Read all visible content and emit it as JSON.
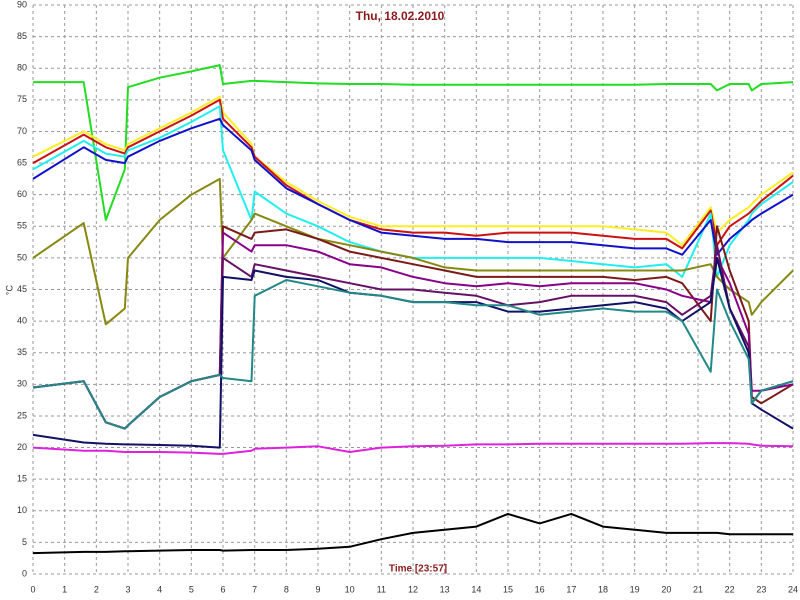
{
  "chart_data": {
    "type": "line",
    "title": "Thu, 18.02.2010",
    "y_label": "°C",
    "x_label": "Time [23:57]",
    "x": [
      0,
      1.6,
      2.3,
      2.9,
      3,
      4,
      5,
      5.9,
      6,
      6.9,
      7,
      8,
      9,
      10,
      11,
      12,
      13,
      14,
      15,
      16,
      17,
      18,
      19,
      20,
      20.5,
      21.4,
      21.6,
      22,
      22.6,
      22.7,
      23,
      24
    ],
    "xlim": [
      0,
      24
    ],
    "xticks": [
      0,
      1,
      2,
      3,
      4,
      5,
      6,
      7,
      8,
      9,
      10,
      11,
      12,
      13,
      14,
      15,
      16,
      17,
      18,
      19,
      20,
      21,
      22,
      23,
      24
    ],
    "ylim": [
      0,
      90
    ],
    "yticks": [
      0,
      5,
      10,
      15,
      20,
      25,
      30,
      35,
      40,
      45,
      50,
      55,
      60,
      65,
      70,
      75,
      80,
      85,
      90
    ],
    "grid": true,
    "series": [
      {
        "color": "#22dd22",
        "values": [
          77.8,
          77.8,
          56,
          64,
          77,
          78.5,
          79.5,
          80.5,
          77.5,
          78,
          78,
          77.8,
          77.6,
          77.5,
          77.5,
          77.4,
          77.4,
          77.4,
          77.4,
          77.4,
          77.4,
          77.4,
          77.4,
          77.5,
          77.5,
          77.5,
          76.5,
          77.5,
          77.5,
          76.5,
          77.5,
          77.8
        ]
      },
      {
        "color": "#ffee22",
        "values": [
          66,
          70,
          68,
          67,
          68,
          70.5,
          73,
          75.5,
          73,
          68,
          66,
          62,
          59,
          56.5,
          55,
          55,
          55,
          55,
          55,
          55,
          55,
          55,
          54.5,
          54,
          52,
          58,
          54,
          56,
          58,
          58.5,
          60,
          63.5
        ]
      },
      {
        "color": "#cc1111",
        "values": [
          65,
          69.5,
          67.5,
          66.5,
          67.5,
          70,
          72.5,
          75,
          72,
          67.5,
          66,
          61.5,
          58.5,
          56,
          54.5,
          54,
          54,
          53.5,
          54,
          54,
          54,
          53.5,
          53,
          53,
          51.5,
          57.5,
          52,
          55,
          57,
          57.5,
          59,
          63
        ]
      },
      {
        "color": "#22eeee",
        "values": [
          64,
          68.5,
          66.5,
          66,
          67,
          69,
          71.5,
          74,
          67,
          56,
          60.5,
          57,
          55,
          52.5,
          51,
          50,
          50,
          50,
          50,
          50,
          49.5,
          49,
          48.5,
          49,
          47,
          57,
          47,
          52,
          56,
          57,
          58.5,
          62
        ]
      },
      {
        "color": "#1111cc",
        "values": [
          62.5,
          67.5,
          65.5,
          65,
          66,
          68.5,
          70.5,
          72,
          71,
          67,
          65.5,
          61,
          58.5,
          56,
          54,
          53.5,
          53,
          53,
          52.5,
          52.5,
          52.5,
          52,
          51.5,
          51.5,
          50.5,
          56,
          50.5,
          53,
          55.5,
          56,
          57,
          60
        ]
      },
      {
        "color": "#888811",
        "values": [
          50,
          55.5,
          39.5,
          42,
          50,
          56,
          60,
          62.5,
          50,
          56,
          57,
          55,
          53,
          52,
          51,
          50,
          48.5,
          48,
          48,
          48,
          48,
          48,
          48,
          48,
          48,
          49,
          47,
          45,
          43,
          41,
          43,
          48
        ]
      },
      {
        "color": "#7a1a1a",
        "values": [
          29.5,
          30.5,
          24,
          23,
          23.5,
          28,
          30.5,
          31.5,
          55,
          53,
          54,
          54.5,
          53,
          51,
          50,
          49,
          48,
          47,
          47,
          47,
          47,
          47,
          46.5,
          47,
          46,
          40,
          55,
          48,
          40,
          28,
          27,
          30
        ]
      },
      {
        "color": "#880088",
        "values": [
          29.5,
          30.5,
          24,
          23,
          23.5,
          28,
          30.5,
          31.5,
          54,
          51,
          52,
          52,
          51,
          49,
          48.5,
          47,
          46,
          45.5,
          46,
          45.5,
          46,
          46,
          46,
          45,
          44,
          43,
          50,
          46,
          38,
          29,
          29,
          30
        ]
      },
      {
        "color": "#661166",
        "values": [
          29.5,
          30.5,
          24,
          23,
          23.5,
          28,
          30.5,
          31.5,
          50,
          47,
          49,
          48,
          47,
          46,
          45,
          45,
          44.5,
          44,
          42.5,
          43,
          44,
          44,
          44,
          43,
          41,
          44,
          52,
          42,
          36,
          27,
          29,
          30.5
        ]
      },
      {
        "color": "#111166",
        "values": [
          22,
          20.8,
          20.6,
          20.5,
          20.5,
          20.4,
          20.3,
          20,
          47,
          46.5,
          48,
          47,
          46.5,
          44.5,
          44,
          43,
          43,
          43,
          41.5,
          41.5,
          42,
          42.5,
          43,
          42,
          40,
          43,
          50,
          42,
          35,
          27,
          26,
          23
        ]
      },
      {
        "color": "#228888",
        "values": [
          29.5,
          30.5,
          24,
          23,
          23.5,
          28,
          30.5,
          31.5,
          31,
          30.5,
          44,
          46.5,
          45.5,
          44.5,
          44,
          43,
          43,
          42.5,
          42.5,
          41,
          41.5,
          42,
          41.5,
          41.5,
          40,
          32,
          45,
          40,
          34,
          27,
          29,
          30.5
        ]
      },
      {
        "color": "#dd22dd",
        "values": [
          20,
          19.5,
          19.5,
          19.3,
          19.3,
          19.3,
          19.2,
          19,
          19,
          19.5,
          19.8,
          20,
          20.2,
          19.3,
          20,
          20.2,
          20.3,
          20.5,
          20.5,
          20.6,
          20.6,
          20.6,
          20.6,
          20.6,
          20.6,
          20.7,
          20.7,
          20.7,
          20.6,
          20.5,
          20.3,
          20.2
        ]
      },
      {
        "color": "#000000",
        "values": [
          3.3,
          3.5,
          3.5,
          3.6,
          3.6,
          3.7,
          3.8,
          3.8,
          3.7,
          3.8,
          3.8,
          3.8,
          4,
          4.3,
          5.5,
          6.5,
          7,
          7.5,
          9.5,
          8,
          9.5,
          7.5,
          7,
          6.5,
          6.5,
          6.5,
          6.5,
          6.3,
          6.3,
          6.3,
          6.3,
          6.3
        ]
      }
    ]
  }
}
